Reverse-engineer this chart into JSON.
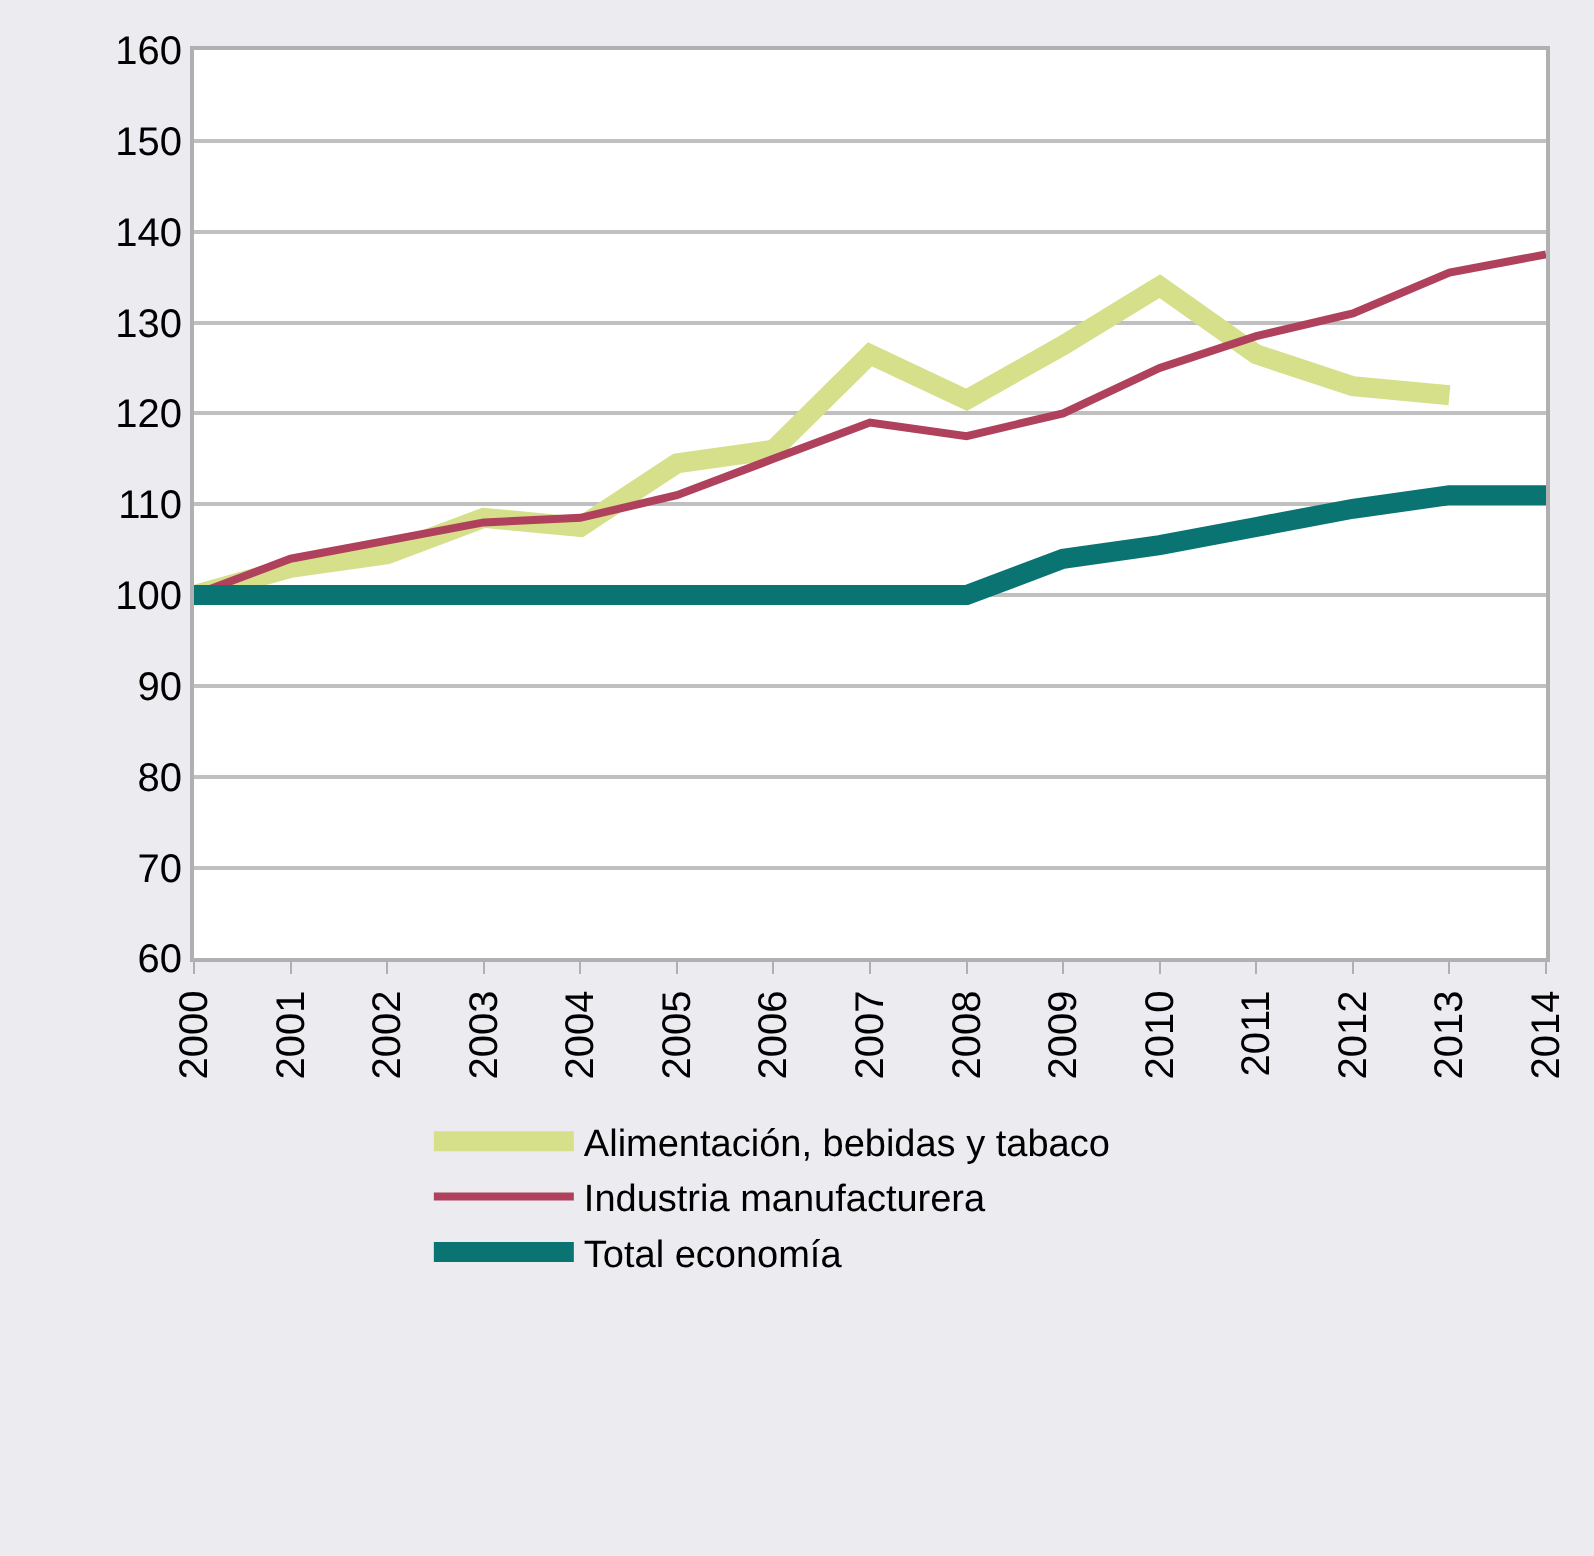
{
  "chart_data": {
    "type": "line",
    "x": [
      2000,
      2001,
      2002,
      2003,
      2004,
      2005,
      2006,
      2007,
      2008,
      2009,
      2010,
      2011,
      2012,
      2013,
      2014
    ],
    "series": [
      {
        "name": "Alimentación, bebidas y tabaco",
        "color": "#d6e08a",
        "values": [
          100,
          103,
          104.5,
          108.5,
          107.5,
          114.5,
          116,
          126.5,
          121.5,
          127.5,
          134,
          126.5,
          123,
          122,
          null
        ]
      },
      {
        "name": "Industria manufacturera",
        "color": "#b0415d",
        "values": [
          100,
          104,
          106,
          108,
          108.5,
          111,
          115,
          119,
          117.5,
          120,
          125,
          128.5,
          131,
          135.5,
          137.5
        ]
      },
      {
        "name": "Total economía",
        "color": "#0a7472",
        "values": [
          100,
          100,
          100,
          100,
          100,
          100,
          100,
          100,
          100,
          104,
          105.5,
          107.5,
          109.5,
          111,
          111
        ]
      }
    ],
    "xlim": [
      2000,
      2014
    ],
    "xticks": [
      2000,
      2001,
      2002,
      2003,
      2004,
      2005,
      2006,
      2007,
      2008,
      2009,
      2010,
      2011,
      2012,
      2013,
      2014
    ],
    "ylim": [
      60,
      160
    ],
    "yticks": [
      60,
      70,
      80,
      90,
      100,
      110,
      120,
      130,
      140,
      150,
      160
    ],
    "grid": "y",
    "legend": "bottom",
    "marker": "none",
    "line_style": "solid"
  }
}
